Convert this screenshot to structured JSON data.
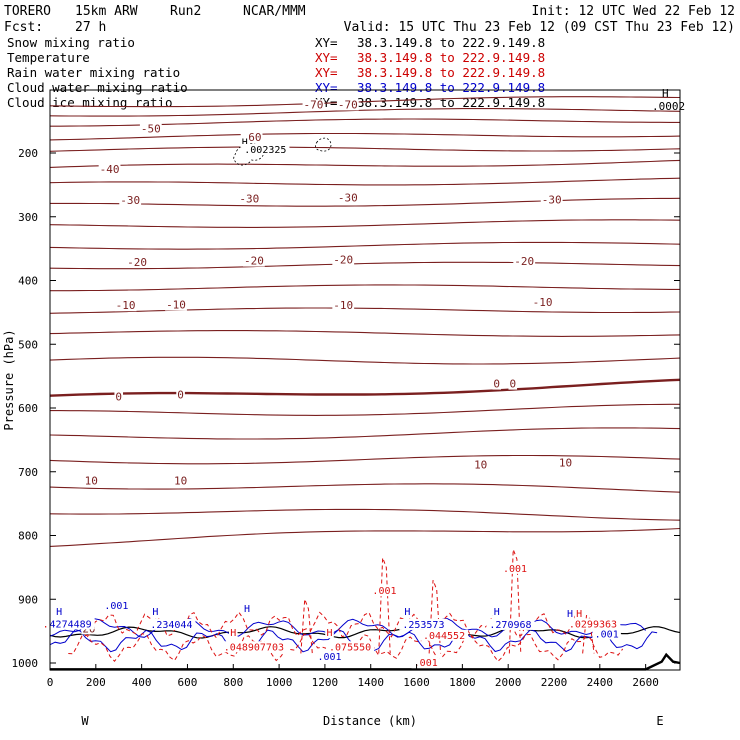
{
  "header": {
    "model": "TORERO",
    "resolution": "15km ARW",
    "run": "Run2",
    "org": "NCAR/MMM",
    "init": "Init: 12 UTC Wed 22 Feb 12",
    "fcst": "Fcst:",
    "fcst_hours": "27 h",
    "valid": "Valid: 15 UTC Thu 23 Feb 12 (09 CST Thu 23 Feb 12)"
  },
  "legend": [
    {
      "label": "Snow mixing ratio",
      "color": "#000000"
    },
    {
      "label": "Temperature",
      "color": "#cc0000"
    },
    {
      "label": "Rain water mixing ratio",
      "color": "#cc0000"
    },
    {
      "label": "Cloud water mixing ratio",
      "color": "#0000cc"
    },
    {
      "label": "Cloud ice mixing ratio",
      "color": "#000000"
    }
  ],
  "xsection": {
    "xy_prefix": "XY=",
    "range": "38.3.149.8 to 222.9.149.8",
    "color": "#cc0000"
  },
  "colors": {
    "temperature": "#7a1f1f",
    "rain": "#dd1111",
    "cloud_water": "#0000cc",
    "snow": "#000000",
    "terrain": "#000000"
  },
  "chart_data": {
    "type": "line",
    "title": "Vertical cross-section",
    "xlabel": "Distance (km)",
    "ylabel": "Pressure (hPa)",
    "xlim": [
      0,
      2750
    ],
    "ylim": [
      1015,
      100
    ],
    "x_ticks": [
      0,
      200,
      400,
      600,
      800,
      1000,
      1200,
      1400,
      1600,
      1800,
      2000,
      2200,
      2400,
      2600
    ],
    "y_ticks": [
      200,
      300,
      400,
      500,
      600,
      700,
      800,
      900,
      1000
    ],
    "y_tick_labels": [
      "200",
      "300",
      "400",
      "500",
      "600",
      "700",
      "800",
      "900",
      "1000"
    ],
    "left_end": "W",
    "right_end": "E",
    "corner_label_h": "H",
    "corner_value": ".0002",
    "temperature_isotherms": [
      {
        "level": -70,
        "p_left": 126,
        "p_right": 113
      },
      {
        "level": -70,
        "p_left": 139,
        "p_right": 132
      },
      {
        "level": -60,
        "p_left": 154,
        "p_right": 148
      },
      {
        "level": -50,
        "p_left": 176,
        "p_right": 170
      },
      {
        "level": -50,
        "p_left": 196,
        "p_right": 192
      },
      {
        "level": -40,
        "p_left": 224,
        "p_right": 213
      },
      {
        "level": -40,
        "p_left": 250,
        "p_right": 243
      },
      {
        "level": -30,
        "p_left": 283,
        "p_right": 275
      },
      {
        "level": -30,
        "p_left": 315,
        "p_right": 308
      },
      {
        "level": -20,
        "p_left": 348,
        "p_right": 343
      },
      {
        "level": -20,
        "p_left": 378,
        "p_right": 374
      },
      {
        "level": -10,
        "p_left": 412,
        "p_right": 410
      },
      {
        "level": -10,
        "p_left": 448,
        "p_right": 446
      },
      {
        "level": -10,
        "p_left": 482,
        "p_right": 484
      },
      {
        "level": 0,
        "p_left": 527,
        "p_right": 524
      },
      {
        "level": 0,
        "p_left": 586,
        "p_right": 561
      },
      {
        "level": 0,
        "p_left": 610,
        "p_right": 600
      },
      {
        "level": 10,
        "p_left": 646,
        "p_right": 636
      },
      {
        "level": 10,
        "p_left": 682,
        "p_right": 680
      },
      {
        "level": 10,
        "p_left": 720,
        "p_right": 728
      },
      {
        "level": 10,
        "p_left": 760,
        "p_right": 770
      },
      {
        "level": 20,
        "p_left": 812,
        "p_right": 784
      }
    ],
    "temperature_labels": [
      {
        "text": "-70",
        "x": 1150,
        "p": 130
      },
      {
        "text": "-70",
        "x": 1300,
        "p": 130
      },
      {
        "text": "-60",
        "x": 880,
        "p": 181
      },
      {
        "text": "-50",
        "x": 440,
        "p": 168
      },
      {
        "text": "-40",
        "x": 260,
        "p": 231
      },
      {
        "text": "-30",
        "x": 350,
        "p": 280
      },
      {
        "text": "-30",
        "x": 870,
        "p": 278
      },
      {
        "text": "-30",
        "x": 1300,
        "p": 276
      },
      {
        "text": "-30",
        "x": 2190,
        "p": 279
      },
      {
        "text": "-20",
        "x": 380,
        "p": 377
      },
      {
        "text": "-20",
        "x": 890,
        "p": 375
      },
      {
        "text": "-20",
        "x": 1280,
        "p": 373
      },
      {
        "text": "-20",
        "x": 2070,
        "p": 376
      },
      {
        "text": "-10",
        "x": 330,
        "p": 445
      },
      {
        "text": "-10",
        "x": 550,
        "p": 444
      },
      {
        "text": "-10",
        "x": 1280,
        "p": 445
      },
      {
        "text": "-10",
        "x": 2150,
        "p": 440
      },
      {
        "text": "0",
        "x": 300,
        "p": 588
      },
      {
        "text": "0",
        "x": 570,
        "p": 585
      },
      {
        "text": "0",
        "x": 1950,
        "p": 568
      },
      {
        "text": "0",
        "x": 2020,
        "p": 568
      },
      {
        "text": "10",
        "x": 180,
        "p": 720
      },
      {
        "text": "10",
        "x": 570,
        "p": 720
      },
      {
        "text": "10",
        "x": 1880,
        "p": 695
      },
      {
        "text": "10",
        "x": 2250,
        "p": 692
      },
      {
        "text": "20",
        "x": 170,
        "p": 952
      }
    ],
    "snow_labels": [
      {
        "text": "H",
        "x": 850,
        "p": 188
      },
      {
        "text": ".002325",
        "x": 940,
        "p": 200
      }
    ],
    "rain_labels": [
      {
        "text": ".001",
        "x": 1460,
        "p": 892
      },
      {
        "text": ".001",
        "x": 2030,
        "p": 857
      },
      {
        "text": "H",
        "x": 800,
        "p": 958
      },
      {
        "text": ".048907703",
        "x": 890,
        "p": 980
      },
      {
        "text": "H",
        "x": 1220,
        "p": 958
      },
      {
        "text": ".075550",
        "x": 1310,
        "p": 980
      },
      {
        "text": ".044552",
        "x": 1720,
        "p": 962
      },
      {
        "text": ".0299363",
        "x": 2370,
        "p": 944
      },
      {
        "text": "H",
        "x": 2310,
        "p": 928
      },
      {
        "text": ".001",
        "x": 1640,
        "p": 1005
      },
      {
        "text": ".004489",
        "x": 60,
        "p": 944
      }
    ],
    "cloud_water_labels": [
      {
        "text": "H",
        "x": 40,
        "p": 925
      },
      {
        "text": "4274489",
        "x": 90,
        "p": 944
      },
      {
        "text": ".001",
        "x": 290,
        "p": 915
      },
      {
        "text": "H",
        "x": 460,
        "p": 925
      },
      {
        "text": ".234044",
        "x": 530,
        "p": 945
      },
      {
        "text": "H",
        "x": 860,
        "p": 920
      },
      {
        "text": "H",
        "x": 1560,
        "p": 925
      },
      {
        "text": ".253573",
        "x": 1630,
        "p": 945
      },
      {
        "text": "H",
        "x": 1950,
        "p": 925
      },
      {
        "text": ".270968",
        "x": 2010,
        "p": 945
      },
      {
        "text": "H",
        "x": 2270,
        "p": 928
      },
      {
        "text": ".001",
        "x": 1220,
        "p": 995
      },
      {
        "text": ".001",
        "x": 2430,
        "p": 960
      }
    ]
  }
}
